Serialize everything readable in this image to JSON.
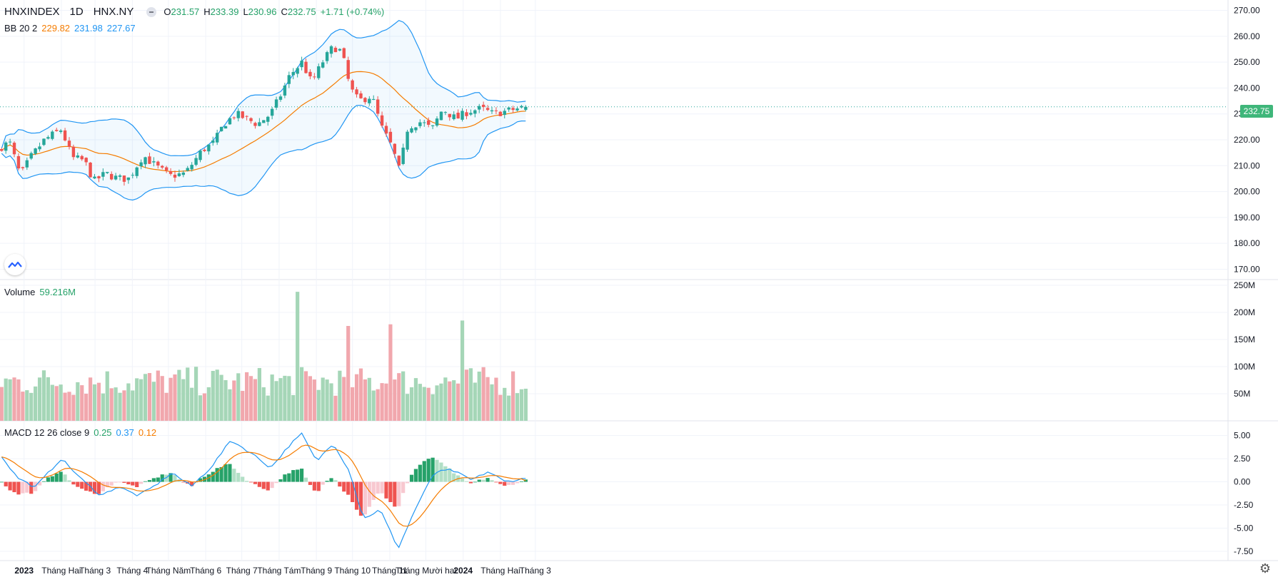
{
  "header": {
    "symbol": "HNXINDEX",
    "interval": "1D",
    "exchange": "HNX.NY",
    "open_label": "O",
    "open": "231.57",
    "high_label": "H",
    "high": "233.39",
    "low_label": "L",
    "low": "230.96",
    "close_label": "C",
    "close": "232.75",
    "change": "+1.71 (+0.74%)"
  },
  "bb_legend": {
    "label": "BB 20 2",
    "basis": "229.82",
    "upper": "231.98",
    "lower": "227.67"
  },
  "volume_legend": {
    "label": "Volume",
    "value": "59.216M"
  },
  "macd_legend": {
    "label": "MACD 12 26 close 9",
    "hist": "0.25",
    "macd": "0.37",
    "signal": "0.12"
  },
  "last_price_badge": "232.75",
  "colors": {
    "up": "#26a69a",
    "down": "#ef5350",
    "vol_up": "#a5d6b7",
    "vol_down": "#f1a7ad",
    "bb_band": "#2196f3",
    "bb_basis": "#f57c00",
    "macd": "#2196f3",
    "signal": "#f57c00",
    "hist_up_strong": "#26a269",
    "hist_up_weak": "#b2dfc6",
    "hist_down_strong": "#ef5350",
    "hist_down_weak": "#f8c8d0"
  },
  "icons": {
    "logo": "tradingview-logo-icon",
    "settings": "gear-icon",
    "collapse": "collapse-dot-icon"
  },
  "chart_data": [
    {
      "type": "candlestick",
      "title": "HNXINDEX 1D HNX.NY",
      "x_tick_labels": [
        "2023",
        "Tháng Hai",
        "Tháng 3",
        "Tháng 4",
        "Tháng Năm",
        "Tháng 6",
        "Tháng 7",
        "Tháng Tám",
        "Tháng 9",
        "Tháng 10",
        "Tháng 11",
        "Tháng Mười hai",
        "2024",
        "Tháng Hai",
        "Tháng 3"
      ],
      "y_tick_labels": [
        "270.00",
        "260.00",
        "250.00",
        "240.00",
        "230.00",
        "220.00",
        "210.00",
        "200.00",
        "190.00",
        "180.00",
        "170.00"
      ],
      "ylim": [
        166,
        274
      ],
      "close_trend": [
        [
          "2022-12-12",
          217
        ],
        [
          "2022-12-20",
          219
        ],
        [
          "2022-12-29",
          206
        ],
        [
          "2023-01-06",
          213
        ],
        [
          "2023-01-18",
          220
        ],
        [
          "2023-02-01",
          224
        ],
        [
          "2023-02-10",
          213
        ],
        [
          "2023-02-20",
          212
        ],
        [
          "2023-02-28",
          204
        ],
        [
          "2023-03-10",
          207
        ],
        [
          "2023-03-20",
          205
        ],
        [
          "2023-03-29",
          205
        ],
        [
          "2023-04-10",
          214
        ],
        [
          "2023-04-20",
          210
        ],
        [
          "2023-05-02",
          206
        ],
        [
          "2023-05-15",
          207
        ],
        [
          "2023-05-29",
          216
        ],
        [
          "2023-06-08",
          219
        ],
        [
          "2023-06-16",
          226
        ],
        [
          "2023-06-26",
          230
        ],
        [
          "2023-07-05",
          228
        ],
        [
          "2023-07-14",
          226
        ],
        [
          "2023-07-25",
          230
        ],
        [
          "2023-08-02",
          237
        ],
        [
          "2023-08-10",
          245
        ],
        [
          "2023-08-20",
          250
        ],
        [
          "2023-08-28",
          242
        ],
        [
          "2023-09-06",
          250
        ],
        [
          "2023-09-15",
          256
        ],
        [
          "2023-09-22",
          254
        ],
        [
          "2023-09-29",
          240
        ],
        [
          "2023-10-06",
          235
        ],
        [
          "2023-10-17",
          237
        ],
        [
          "2023-10-25",
          225
        ],
        [
          "2023-11-03",
          217
        ],
        [
          "2023-11-09",
          208
        ],
        [
          "2023-11-16",
          225
        ],
        [
          "2023-11-27",
          227
        ],
        [
          "2023-12-06",
          224
        ],
        [
          "2023-12-15",
          232
        ],
        [
          "2023-12-26",
          228
        ],
        [
          "2024-01-05",
          231
        ],
        [
          "2024-01-16",
          232
        ],
        [
          "2024-01-26",
          230
        ],
        [
          "2024-02-05",
          231
        ],
        [
          "2024-02-22",
          232.75
        ]
      ],
      "last": {
        "open": 231.57,
        "high": 233.39,
        "low": 230.96,
        "close": 232.75
      }
    },
    {
      "type": "bar",
      "title": "Volume",
      "y_tick_labels": [
        "250M",
        "200M",
        "150M",
        "100M",
        "50M"
      ],
      "ylim": [
        0,
        250
      ],
      "unit": "M",
      "notable_values": [
        [
          "2023-08-17",
          238
        ],
        [
          "2023-11-02",
          178
        ],
        [
          "2024-01-02",
          185
        ],
        [
          "2023-09-28",
          175
        ]
      ],
      "last_value": 59.216
    },
    {
      "type": "line",
      "title": "MACD 12 26 close 9",
      "y_tick_labels": [
        "5.00",
        "2.50",
        "0.00",
        "-2.50",
        "-5.00",
        "-7.50"
      ],
      "ylim": [
        -8.5,
        6.2
      ],
      "macd_trend": [
        [
          "2022-12-12",
          3.0
        ],
        [
          "2022-12-26",
          0.5
        ],
        [
          "2023-01-10",
          -0.6
        ],
        [
          "2023-02-01",
          2.5
        ],
        [
          "2023-02-20",
          0.0
        ],
        [
          "2023-03-06",
          -1.5
        ],
        [
          "2023-03-20",
          -0.5
        ],
        [
          "2023-04-06",
          -1.5
        ],
        [
          "2023-04-20",
          -0.4
        ],
        [
          "2023-05-04",
          1.0
        ],
        [
          "2023-05-20",
          -0.5
        ],
        [
          "2023-06-05",
          1.5
        ],
        [
          "2023-06-22",
          4.5
        ],
        [
          "2023-07-10",
          3.0
        ],
        [
          "2023-07-25",
          1.5
        ],
        [
          "2023-08-10",
          4.0
        ],
        [
          "2023-08-20",
          5.2
        ],
        [
          "2023-09-01",
          2.2
        ],
        [
          "2023-09-15",
          4.2
        ],
        [
          "2023-09-29",
          1.0
        ],
        [
          "2023-10-10",
          -4.0
        ],
        [
          "2023-10-24",
          -3.0
        ],
        [
          "2023-11-08",
          -7.2
        ],
        [
          "2023-11-22",
          -3.0
        ],
        [
          "2023-12-08",
          1.0
        ],
        [
          "2023-12-22",
          1.3
        ],
        [
          "2024-01-08",
          0.2
        ],
        [
          "2024-01-22",
          1.1
        ],
        [
          "2024-02-05",
          0.0
        ],
        [
          "2024-02-22",
          0.37
        ]
      ],
      "signal_last": 0.12,
      "hist_last": 0.25
    }
  ]
}
